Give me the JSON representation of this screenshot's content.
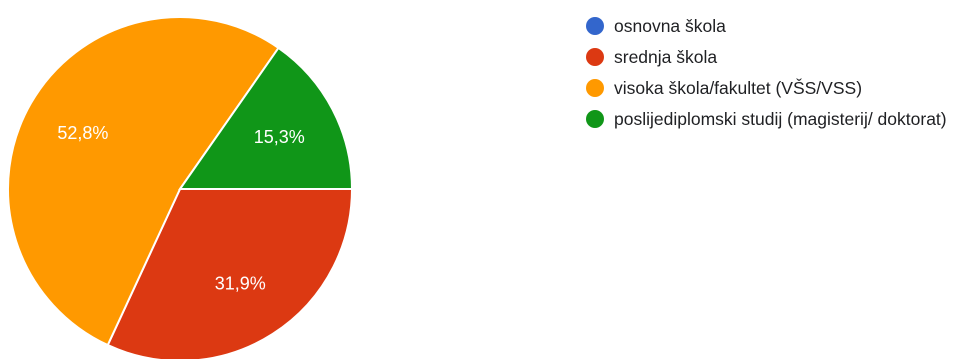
{
  "chart_data": {
    "type": "pie",
    "categories": [
      "osnovna škola",
      "srednja škola",
      "visoka škola/fakultet (VŠS/VSS)",
      "poslijediplomski studij (magisterij/ doktorat)"
    ],
    "values": [
      0,
      31.9,
      52.8,
      15.3
    ],
    "labels": [
      "",
      "31,9%",
      "52,8%",
      "15,3%"
    ],
    "colors": [
      "#3366cc",
      "#dc3912",
      "#ff9900",
      "#109618"
    ],
    "legend_position": "right",
    "start_angle": "3 o'clock, clockwise"
  },
  "legend": {
    "items": [
      {
        "label": "osnovna škola",
        "color": "#3366cc"
      },
      {
        "label": "srednja škola",
        "color": "#dc3912"
      },
      {
        "label": "visoka škola/fakultet (VŠS/VSS)",
        "color": "#ff9900"
      },
      {
        "label": "poslijediplomski studij (magisterij/ doktorat)",
        "color": "#109618"
      }
    ]
  }
}
